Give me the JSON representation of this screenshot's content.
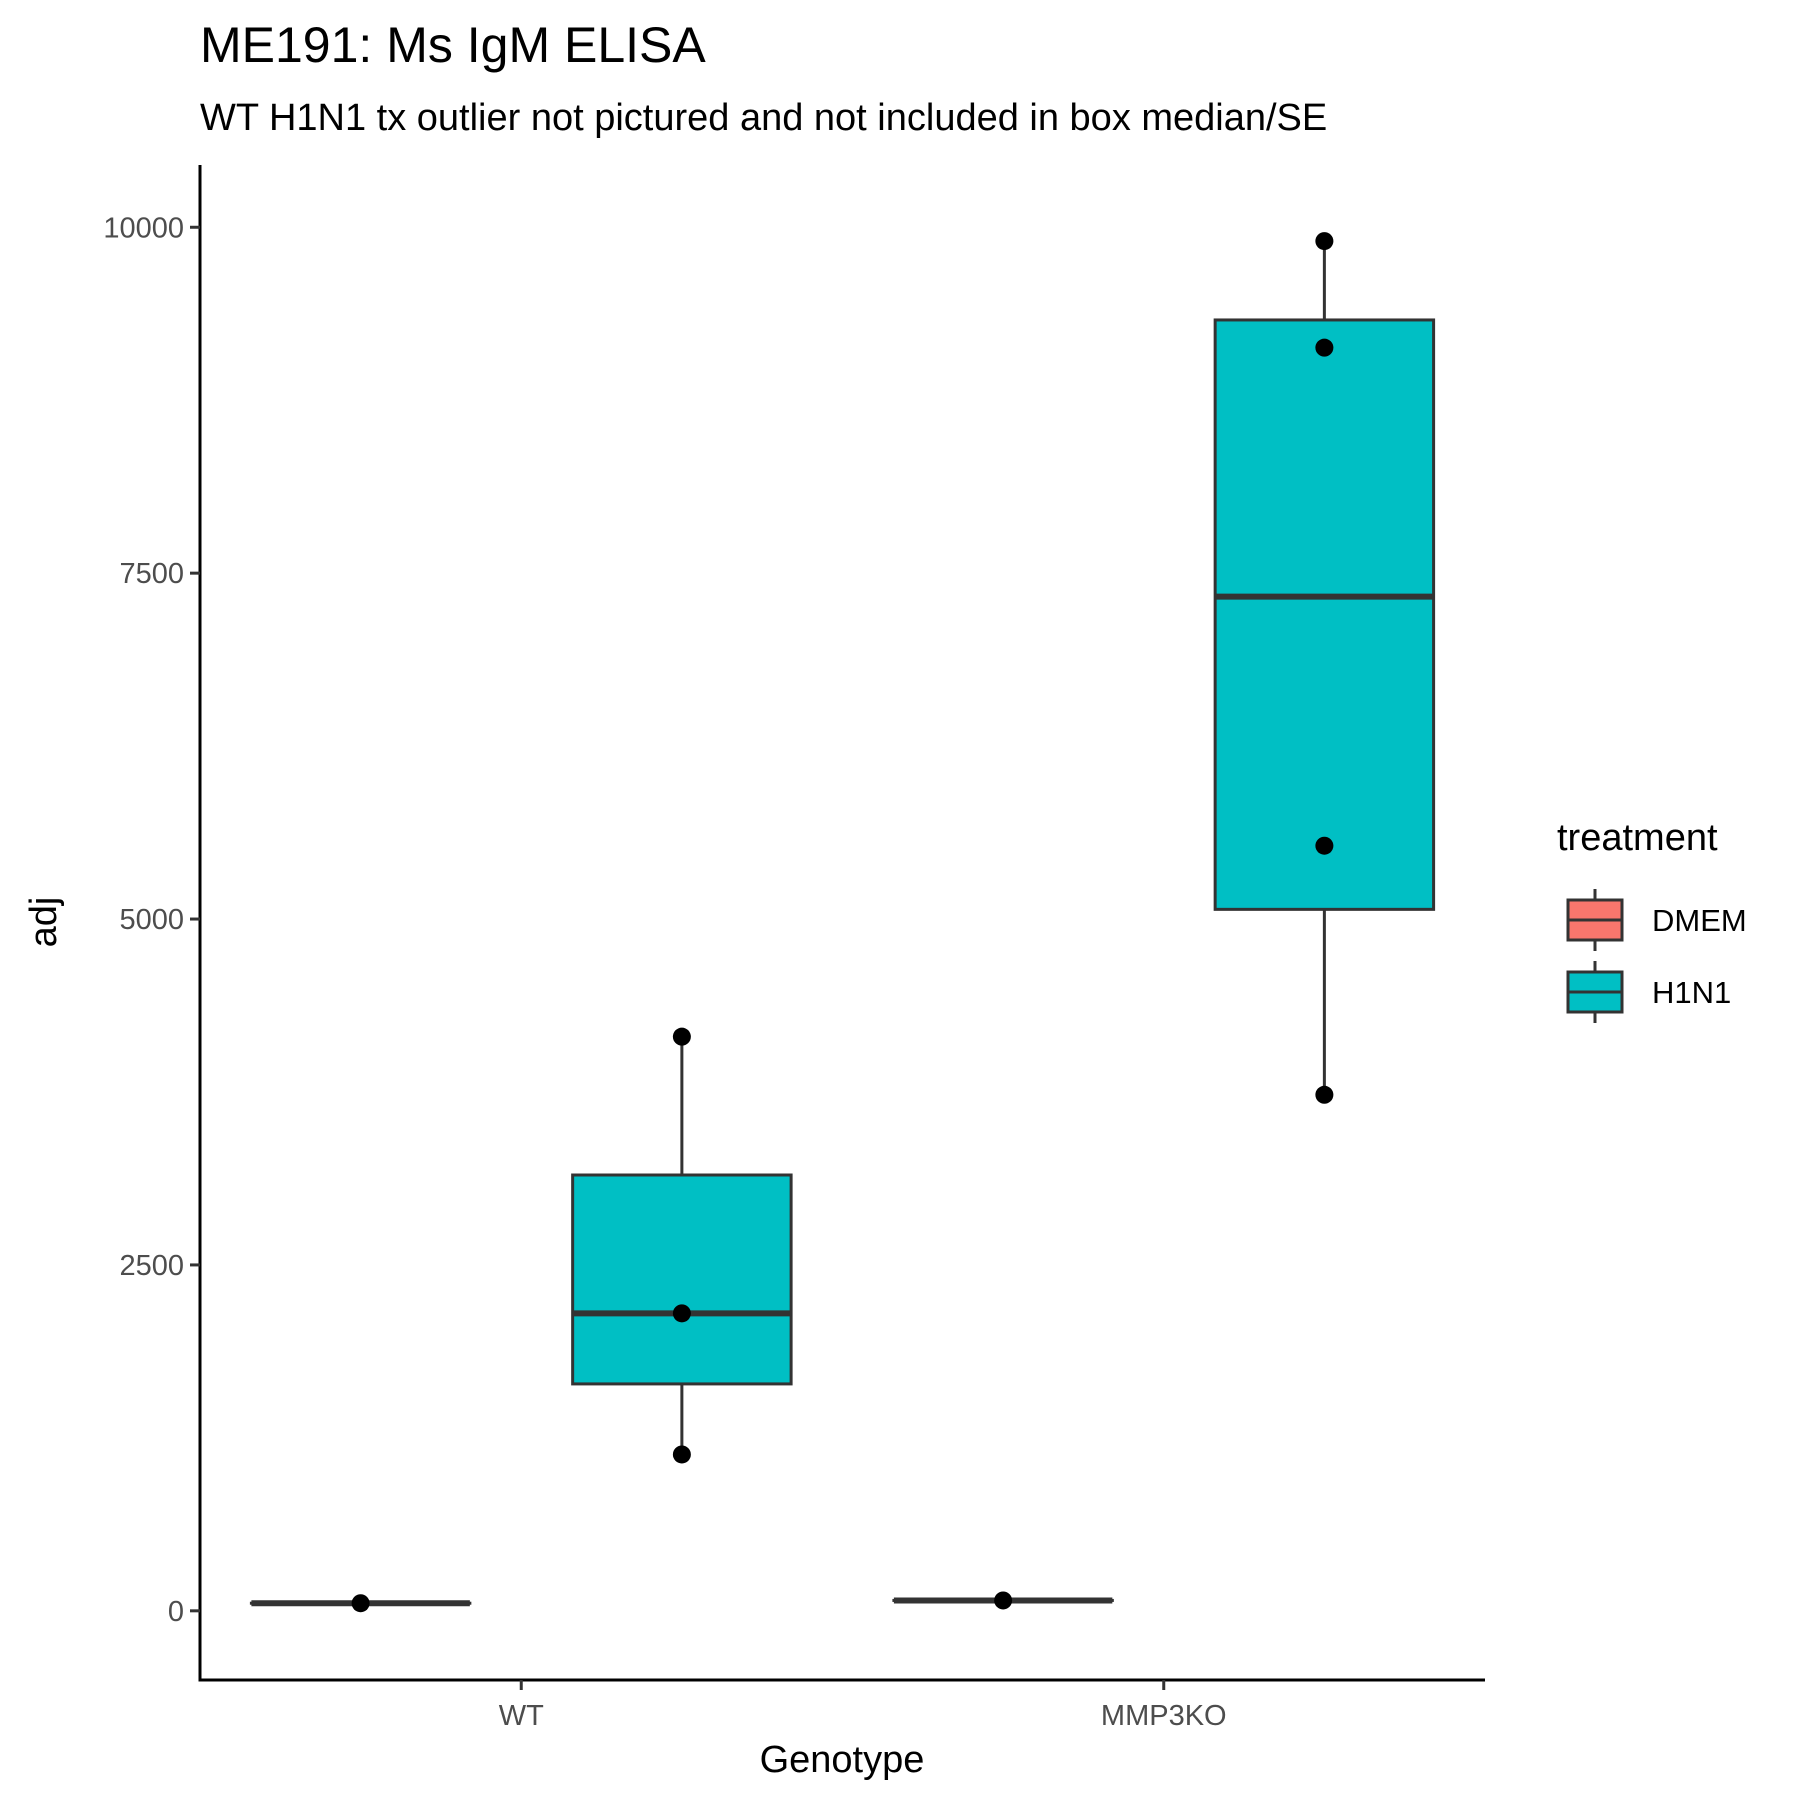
{
  "chart_data": {
    "type": "box",
    "title": "ME191: Ms IgM ELISA",
    "subtitle": "WT H1N1 tx outlier not pictured and not included in box median/SE",
    "xlabel": "Genotype",
    "ylabel": "adj",
    "ylim": [
      -500,
      10450
    ],
    "yticks": [
      0,
      2500,
      5000,
      7500,
      10000
    ],
    "categories": [
      "WT",
      "MMP3KO"
    ],
    "legend": {
      "title": "treatment",
      "position": "right",
      "items": [
        {
          "label": "DMEM",
          "color": "#F8766D"
        },
        {
          "label": "H1N1",
          "color": "#00BFC4"
        }
      ]
    },
    "series": [
      {
        "name": "DMEM",
        "color": "#F8766D",
        "boxes": [
          {
            "category": "WT",
            "min": 55,
            "q1": 55,
            "median": 55,
            "q3": 55,
            "max": 55
          },
          {
            "category": "MMP3KO",
            "min": 75,
            "q1": 75,
            "median": 75,
            "q3": 75,
            "max": 75
          }
        ],
        "points": [
          {
            "category": "WT",
            "values": [
              55
            ]
          },
          {
            "category": "MMP3KO",
            "values": [
              75
            ]
          }
        ]
      },
      {
        "name": "H1N1",
        "color": "#00BFC4",
        "boxes": [
          {
            "category": "WT",
            "min": 1130,
            "q1": 1640,
            "median": 2150,
            "q3": 3150,
            "max": 4150
          },
          {
            "category": "MMP3KO",
            "min": 3730,
            "q1": 5070,
            "median": 7330,
            "q3": 9330,
            "max": 9900
          }
        ],
        "points": [
          {
            "category": "WT",
            "values": [
              1130,
              2150,
              4150
            ]
          },
          {
            "category": "MMP3KO",
            "values": [
              3730,
              5530,
              9130,
              9900
            ]
          }
        ]
      }
    ],
    "grid": false
  }
}
